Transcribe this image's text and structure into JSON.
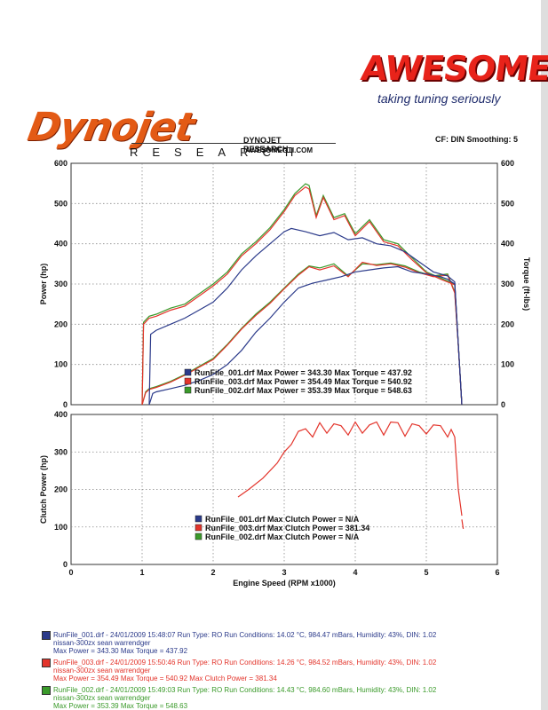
{
  "header": {
    "awesome_logo": "AWESOME",
    "awesome_tagline": "taking tuning seriously",
    "dynojet_logo": "Dynojet",
    "dynojet_spaced": "RESEARCH",
    "dynojet_research": "DYNOJET RESEARCH",
    "dynojet_url": "AWESOMEGTI.COM",
    "cf_smoothing": "CF: DIN  Smoothing: 5"
  },
  "colors": {
    "run1": "#2b3a8a",
    "run3": "#e3342b",
    "run2": "#3a9a2a"
  },
  "chart_data": [
    {
      "type": "line",
      "title": "",
      "xlabel": "",
      "ylabel": "Power (hp)",
      "ylabel_right": "Torque (ft-lbs)",
      "xlim": [
        0,
        6
      ],
      "ylim": [
        0,
        600
      ],
      "y2lim": [
        0,
        600
      ],
      "x_ticks": [
        0,
        1,
        2,
        3,
        4,
        5,
        6
      ],
      "y_ticks": [
        0,
        100,
        200,
        300,
        400,
        500,
        600
      ],
      "grid": true,
      "legend": [
        "RunFile_001.drf Max Power = 343.30    Max Torque = 437.92",
        "RunFile_003.drf Max Power = 354.49    Max Torque = 540.92",
        "RunFile_002.drf Max Power = 353.39    Max Torque = 548.63"
      ],
      "legend_placement": "bottom-center",
      "series": [
        {
          "color": "#3a9a2a",
          "power": {
            "x": [
              1.0,
              1.05,
              1.1,
              1.2,
              1.4,
              1.6,
              1.8,
              2.0,
              2.2,
              2.4,
              2.6,
              2.8,
              3.0,
              3.2,
              3.35,
              3.5,
              3.7,
              3.9,
              4.1,
              4.3,
              4.5,
              4.7,
              4.9,
              5.1,
              5.3,
              5.4,
              5.45,
              5.5
            ],
            "y": [
              0,
              32,
              40,
              45,
              58,
              75,
              95,
              115,
              150,
              190,
              225,
              255,
              290,
              325,
              345,
              340,
              350,
              320,
              350,
              348,
              352,
              345,
              330,
              320,
              325,
              280,
              150,
              0
            ]
          },
          "torque": {
            "x": [
              1.0,
              1.02,
              1.1,
              1.2,
              1.4,
              1.6,
              1.8,
              2.0,
              2.2,
              2.4,
              2.6,
              2.8,
              3.0,
              3.15,
              3.3,
              3.35,
              3.45,
              3.55,
              3.7,
              3.85,
              4.0,
              4.2,
              4.4,
              4.6,
              4.8,
              5.0,
              5.2,
              5.4,
              5.45,
              5.5
            ],
            "y": [
              0,
              205,
              220,
              225,
              240,
              250,
              275,
              300,
              330,
              375,
              405,
              440,
              485,
              525,
              549,
              545,
              470,
              520,
              465,
              475,
              425,
              460,
              410,
              400,
              365,
              330,
              315,
              300,
              150,
              0
            ]
          }
        },
        {
          "color": "#e3342b",
          "power": {
            "x": [
              1.0,
              1.05,
              1.1,
              1.2,
              1.4,
              1.6,
              1.8,
              2.0,
              2.2,
              2.4,
              2.6,
              2.8,
              3.0,
              3.2,
              3.35,
              3.5,
              3.7,
              3.9,
              4.1,
              4.3,
              4.5,
              4.7,
              4.9,
              5.1,
              5.3,
              5.4,
              5.45,
              5.5
            ],
            "y": [
              0,
              30,
              38,
              43,
              56,
              73,
              93,
              112,
              148,
              188,
              222,
              252,
              288,
              322,
              343,
              335,
              345,
              318,
              354,
              346,
              350,
              342,
              328,
              318,
              322,
              278,
              148,
              0
            ]
          },
          "torque": {
            "x": [
              1.0,
              1.02,
              1.1,
              1.2,
              1.4,
              1.6,
              1.8,
              2.0,
              2.2,
              2.4,
              2.6,
              2.8,
              3.0,
              3.15,
              3.3,
              3.35,
              3.45,
              3.55,
              3.7,
              3.85,
              4.0,
              4.2,
              4.4,
              4.6,
              4.8,
              5.0,
              5.2,
              5.4,
              5.45,
              5.5
            ],
            "y": [
              0,
              200,
              215,
              220,
              235,
              245,
              270,
              295,
              325,
              370,
              400,
              435,
              480,
              520,
              541,
              536,
              465,
              515,
              460,
              470,
              420,
              455,
              405,
              395,
              360,
              328,
              312,
              298,
              148,
              0
            ]
          }
        },
        {
          "color": "#2b3a8a",
          "power": {
            "x": [
              1.1,
              1.15,
              1.2,
              1.4,
              1.6,
              1.8,
              2.0,
              2.2,
              2.4,
              2.6,
              2.8,
              3.0,
              3.2,
              3.4,
              3.6,
              3.8,
              4.0,
              4.2,
              4.4,
              4.6,
              4.8,
              5.0,
              5.2,
              5.3,
              5.4,
              5.45,
              5.5
            ],
            "y": [
              0,
              28,
              32,
              40,
              48,
              60,
              75,
              100,
              135,
              180,
              215,
              255,
              290,
              302,
              310,
              318,
              330,
              335,
              340,
              343,
              330,
              325,
              318,
              312,
              300,
              150,
              0
            ]
          },
          "torque": {
            "x": [
              1.1,
              1.12,
              1.2,
              1.4,
              1.6,
              1.8,
              2.0,
              2.2,
              2.4,
              2.6,
              2.8,
              3.0,
              3.1,
              3.3,
              3.5,
              3.7,
              3.9,
              4.1,
              4.3,
              4.5,
              4.7,
              4.9,
              5.1,
              5.3,
              5.4,
              5.45,
              5.5
            ],
            "y": [
              0,
              175,
              185,
              200,
              215,
              235,
              255,
              290,
              335,
              370,
              400,
              430,
              438,
              430,
              420,
              428,
              410,
              415,
              400,
              395,
              380,
              355,
              330,
              320,
              305,
              150,
              0
            ]
          }
        }
      ]
    },
    {
      "type": "line",
      "title": "",
      "xlabel": "Engine Speed (RPM x1000)",
      "ylabel": "Clutch Power (hp)",
      "xlim": [
        0,
        6
      ],
      "ylim": [
        0,
        400
      ],
      "x_ticks": [
        0,
        1,
        2,
        3,
        4,
        5,
        6
      ],
      "y_ticks": [
        0,
        100,
        200,
        300,
        400
      ],
      "grid": true,
      "legend": [
        "RunFile_001.drf Max Clutch Power = N/A",
        "RunFile_003.drf Max Clutch Power = 381.34",
        "RunFile_002.drf Max Clutch Power = N/A"
      ],
      "legend_placement": "bottom-center",
      "series": [
        {
          "color": "#e3342b",
          "x": [
            2.35,
            2.5,
            2.7,
            2.9,
            3.0,
            3.1,
            3.2,
            3.3,
            3.4,
            3.5,
            3.6,
            3.7,
            3.8,
            3.9,
            4.0,
            4.1,
            4.2,
            4.3,
            4.4,
            4.5,
            4.6,
            4.7,
            4.8,
            4.9,
            5.0,
            5.1,
            5.2,
            5.3,
            5.35,
            5.4,
            5.45,
            5.5
          ],
          "y": [
            180,
            200,
            230,
            270,
            300,
            320,
            355,
            362,
            340,
            378,
            350,
            375,
            370,
            345,
            380,
            350,
            372,
            380,
            345,
            380,
            378,
            342,
            375,
            370,
            348,
            372,
            370,
            340,
            360,
            340,
            200,
            130
          ]
        },
        {
          "color": "#e3342b",
          "x": [
            5.5,
            5.52
          ],
          "y": [
            120,
            95
          ]
        }
      ]
    }
  ],
  "run_info": [
    {
      "color": "#2b3a8a",
      "line1": "RunFile_001.drf - 24/01/2009 15:48:07  Run Type: RO  Run Conditions: 14.02 °C, 984.47 mBars,  Humidity:  43%, DIN: 1.02",
      "line2": "nissan-300zx sean warrendger",
      "line3": "Max Power = 343.30  Max Torque = 437.92"
    },
    {
      "color": "#e3342b",
      "line1": "RunFile_003.drf - 24/01/2009 15:50:46  Run Type: RO  Run Conditions: 14.26 °C, 984.52 mBars,  Humidity:  43%, DIN: 1.02",
      "line2": "nissan-300zx sean warrendger",
      "line3": "Max Power = 354.49  Max Torque = 540.92  Max Clutch Power = 381.34"
    },
    {
      "color": "#3a9a2a",
      "line1": "RunFile_002.drf - 24/01/2009 15:49:03  Run Type: RO  Run Conditions: 14.43 °C, 984.60 mBars,  Humidity:  43%, DIN: 1.02",
      "line2": "nissan-300zx sean warrendger",
      "line3": "Max Power = 353.39  Max Torque = 548.63"
    }
  ]
}
